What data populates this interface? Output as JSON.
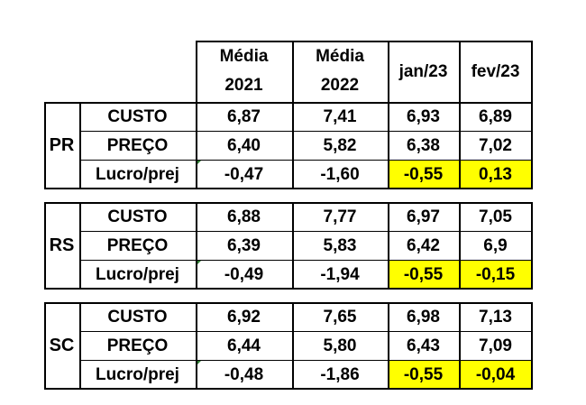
{
  "header": {
    "col1": [
      "Média",
      "2021"
    ],
    "col2": [
      "Média",
      "2022"
    ],
    "col3": "jan/23",
    "col4": "fev/23"
  },
  "regions": [
    {
      "name": "PR",
      "rows": [
        {
          "label": "CUSTO",
          "values": [
            "6,87",
            "7,41",
            "6,93",
            "6,89"
          ]
        },
        {
          "label": "PREÇO",
          "values": [
            "6,40",
            "5,82",
            "6,38",
            "7,02"
          ]
        },
        {
          "label": "Lucro/prej",
          "values": [
            "-0,47",
            "-1,60",
            "-0,55",
            "0,13"
          ]
        }
      ]
    },
    {
      "name": "RS",
      "rows": [
        {
          "label": "CUSTO",
          "values": [
            "6,88",
            "7,77",
            "6,97",
            "7,05"
          ]
        },
        {
          "label": "PREÇO",
          "values": [
            "6,39",
            "5,83",
            "6,42",
            "6,9"
          ]
        },
        {
          "label": "Lucro/prej",
          "values": [
            "-0,49",
            "-1,94",
            "-0,55",
            "-0,15"
          ]
        }
      ]
    },
    {
      "name": "SC",
      "rows": [
        {
          "label": "CUSTO",
          "values": [
            "6,92",
            "7,65",
            "6,98",
            "7,13"
          ]
        },
        {
          "label": "PREÇO",
          "values": [
            "6,44",
            "5,80",
            "6,43",
            "7,09"
          ]
        },
        {
          "label": "Lucro/prej",
          "values": [
            "-0,48",
            "-1,86",
            "-0,55",
            "-0,04"
          ]
        }
      ]
    }
  ],
  "highlight_color": "#ffff00",
  "line_color": "#000000"
}
